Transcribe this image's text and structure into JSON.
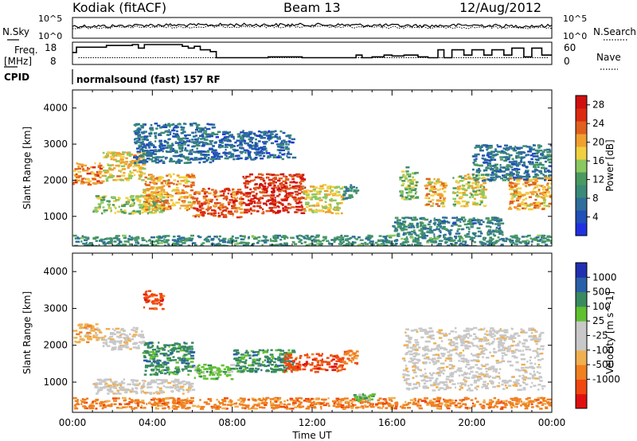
{
  "header": {
    "station": "Kodiak (fitACF)",
    "beam": "Beam 13",
    "date": "12/Aug/2012"
  },
  "strip_labels": {
    "nsky": "N.Sky",
    "nsearch": "N.Search",
    "freq": "Freq.",
    "freq_unit": "[MHz]",
    "nave": "Nave",
    "cpid": "CPID",
    "cpid_value": "normalsound (fast) 157 RF",
    "noise_ticks_left": [
      "10^5",
      "10^0"
    ],
    "noise_ticks_right": [
      "10^5",
      "10^0"
    ],
    "freq_ticks": [
      "18",
      "8"
    ],
    "nave_ticks": [
      "60",
      "0"
    ]
  },
  "colors": {
    "power_scale": [
      "#2030e0",
      "#2050b8",
      "#2f6e9a",
      "#3a8a78",
      "#4a9a60",
      "#8cc860",
      "#f0d040",
      "#f0a030",
      "#e06020",
      "#dc2a10",
      "#d01010"
    ],
    "velocity_scale": [
      "#e01010",
      "#f04810",
      "#f08020",
      "#f0b050",
      "#c8c8c8",
      "#c8c8c8",
      "#60c030",
      "#3a8a60",
      "#2a60a8",
      "#2030b0"
    ]
  },
  "chart_data": [
    {
      "type": "line",
      "panel": "noise",
      "series": [
        {
          "name": "N.Sky",
          "style": "solid"
        },
        {
          "name": "N.Search",
          "style": "dotted"
        }
      ],
      "y_scale": "log",
      "ylim": [
        1,
        100000
      ],
      "x": [
        "00:00",
        "02:00",
        "04:00",
        "06:00",
        "08:00",
        "10:00",
        "12:00",
        "14:00",
        "16:00",
        "18:00",
        "20:00",
        "22:00",
        "24:00"
      ],
      "values_sky": [
        1000,
        1000,
        2000,
        1800,
        2500,
        2200,
        2400,
        2000,
        1500,
        1200,
        1800,
        1000,
        1200
      ],
      "values_search": [
        300,
        400,
        600,
        500,
        800,
        700,
        650,
        500,
        450,
        400,
        450,
        350,
        400
      ]
    },
    {
      "type": "line",
      "panel": "frequency_nave",
      "series": [
        {
          "name": "Freq.",
          "style": "solid"
        },
        {
          "name": "Nave",
          "style": "dotted"
        }
      ],
      "freq_ylim": [
        8,
        18
      ],
      "nave_ylim": [
        0,
        60
      ],
      "freq_steps": [
        [
          0.0,
          13.5
        ],
        [
          0.1,
          13.5
        ],
        [
          0.2,
          16.5
        ],
        [
          1.5,
          16.5
        ],
        [
          1.7,
          17.5
        ],
        [
          2.5,
          17.5
        ],
        [
          3.0,
          18
        ],
        [
          3.3,
          16
        ],
        [
          3.6,
          18
        ],
        [
          5.2,
          18
        ],
        [
          5.5,
          17
        ],
        [
          5.8,
          16
        ],
        [
          6.1,
          17
        ],
        [
          6.4,
          15
        ],
        [
          6.9,
          14
        ],
        [
          7.2,
          10.5
        ],
        [
          9.5,
          10.5
        ],
        [
          9.8,
          11
        ],
        [
          11,
          11
        ],
        [
          11.5,
          10.5
        ],
        [
          13.5,
          10.5
        ],
        [
          14.2,
          12
        ],
        [
          14.5,
          10.5
        ],
        [
          15.0,
          11
        ],
        [
          15.6,
          12
        ],
        [
          16.0,
          11.5
        ],
        [
          16.6,
          12
        ],
        [
          17.3,
          11
        ],
        [
          17.8,
          10.5
        ],
        [
          18.3,
          15
        ],
        [
          18.6,
          10.5
        ],
        [
          19.0,
          15
        ],
        [
          19.6,
          12
        ],
        [
          20.0,
          15
        ],
        [
          20.6,
          12
        ],
        [
          21.0,
          15
        ],
        [
          21.6,
          12
        ],
        [
          22.0,
          16
        ],
        [
          22.6,
          11
        ],
        [
          23.0,
          16
        ],
        [
          23.5,
          12
        ],
        [
          24.0,
          12
        ]
      ],
      "nave_level": 15
    },
    {
      "type": "heatmap",
      "panel": "power",
      "xlabel": "",
      "ylabel": "Slant Range [km]",
      "ylim": [
        180,
        4500
      ],
      "y_ticks": [
        1000,
        2000,
        3000,
        4000
      ],
      "colorbar_label": "Power [dB]",
      "colorbar_ticks": [
        4,
        8,
        12,
        16,
        20,
        24,
        28
      ],
      "colorbar_range": [
        0,
        30
      ],
      "bands": [
        {
          "t0": 0.0,
          "t1": 1.5,
          "r0": 1900,
          "r1": 2500,
          "level": 22
        },
        {
          "t0": 1.5,
          "t1": 3.5,
          "r0": 2000,
          "r1": 2800,
          "level": 18
        },
        {
          "t0": 1.0,
          "t1": 4.5,
          "r0": 1100,
          "r1": 1600,
          "level": 15
        },
        {
          "t0": 3.5,
          "t1": 6.0,
          "r0": 1200,
          "r1": 2200,
          "level": 20
        },
        {
          "t0": 6.0,
          "t1": 8.5,
          "r0": 1000,
          "r1": 1800,
          "level": 24
        },
        {
          "t0": 8.5,
          "t1": 11.5,
          "r0": 1100,
          "r1": 2200,
          "level": 26
        },
        {
          "t0": 11.5,
          "t1": 13.5,
          "r0": 1100,
          "r1": 1900,
          "level": 18
        },
        {
          "t0": 13.5,
          "t1": 14.2,
          "r0": 1500,
          "r1": 1900,
          "level": 10
        },
        {
          "t0": 16.3,
          "t1": 17.2,
          "r0": 1500,
          "r1": 2400,
          "level": 14
        },
        {
          "t0": 17.6,
          "t1": 18.6,
          "r0": 1300,
          "r1": 2100,
          "level": 20
        },
        {
          "t0": 19.0,
          "t1": 20.6,
          "r0": 1300,
          "r1": 2200,
          "level": 17
        },
        {
          "t0": 21.8,
          "t1": 24.0,
          "r0": 1200,
          "r1": 2100,
          "level": 20
        },
        {
          "t0": 20.0,
          "t1": 24.0,
          "r0": 2000,
          "r1": 3000,
          "level": 8
        },
        {
          "t0": 3.0,
          "t1": 7.0,
          "r0": 2500,
          "r1": 3600,
          "level": 7
        },
        {
          "t0": 7.0,
          "t1": 11.0,
          "r0": 2600,
          "r1": 3400,
          "level": 6
        },
        {
          "t0": 16.0,
          "t1": 21.5,
          "r0": 500,
          "r1": 1000,
          "level": 9
        },
        {
          "t0": 0.0,
          "t1": 24.0,
          "r0": 200,
          "r1": 500,
          "level": 10
        }
      ]
    },
    {
      "type": "heatmap",
      "panel": "velocity",
      "xlabel": "Time UT",
      "ylabel": "Slant Range [km]",
      "ylim": [
        180,
        4500
      ],
      "y_ticks": [
        1000,
        2000,
        3000,
        4000
      ],
      "x_ticks": [
        "00:00",
        "04:00",
        "08:00",
        "12:00",
        "16:00",
        "20:00",
        "00:00"
      ],
      "colorbar_label": "Velocity [m s^-1]",
      "colorbar_ticks": [
        "1000",
        "500",
        "100",
        "25",
        "-25",
        "-100",
        "-500",
        "-1000"
      ],
      "bands": [
        {
          "t0": 0.0,
          "t1": 1.5,
          "r0": 2100,
          "r1": 2600,
          "level": "-25"
        },
        {
          "t0": 1.5,
          "t1": 3.5,
          "r0": 1900,
          "r1": 2500,
          "level": "0"
        },
        {
          "t0": 3.5,
          "t1": 6.0,
          "r0": 1200,
          "r1": 2100,
          "level": "500"
        },
        {
          "t0": 6.0,
          "t1": 8.0,
          "r0": 1100,
          "r1": 1500,
          "level": "100"
        },
        {
          "t0": 8.0,
          "t1": 11.0,
          "r0": 1300,
          "r1": 1900,
          "level": "500"
        },
        {
          "t0": 10.5,
          "t1": 13.5,
          "r0": 1300,
          "r1": 1800,
          "level": "-500"
        },
        {
          "t0": 13.5,
          "t1": 14.2,
          "r0": 1500,
          "r1": 1900,
          "level": "-100"
        },
        {
          "t0": 16.5,
          "t1": 23.5,
          "r0": 800,
          "r1": 2500,
          "level": "0"
        },
        {
          "t0": 0.0,
          "t1": 24.0,
          "r0": 300,
          "r1": 600,
          "level": "-100"
        },
        {
          "t0": 1.0,
          "t1": 6.0,
          "r0": 700,
          "r1": 1100,
          "level": "0"
        },
        {
          "t0": 3.5,
          "t1": 4.5,
          "r0": 3000,
          "r1": 3500,
          "level": "-500"
        },
        {
          "t0": 14.0,
          "t1": 15.0,
          "r0": 500,
          "r1": 700,
          "level": "100"
        }
      ]
    }
  ]
}
